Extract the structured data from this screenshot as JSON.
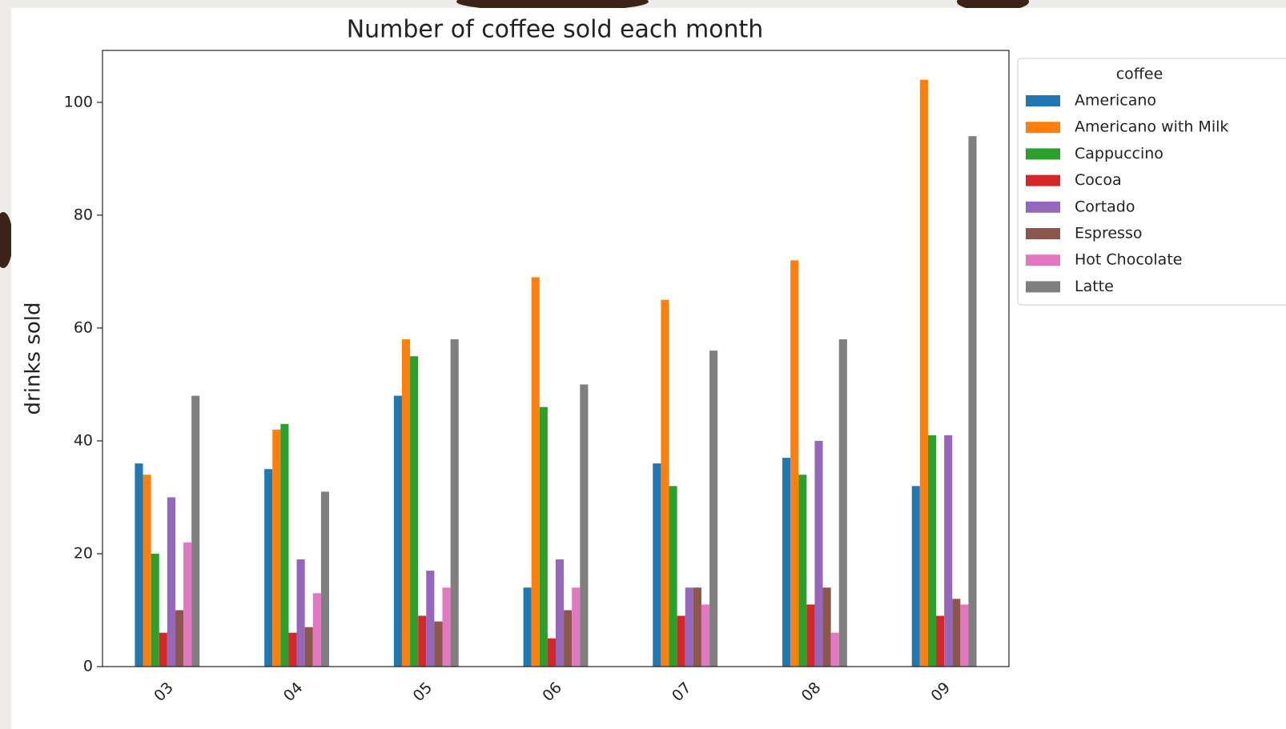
{
  "chart_data": {
    "type": "bar",
    "title": "Number of coffee sold each month",
    "y_label": "drinks sold",
    "categories": [
      "03",
      "04",
      "05",
      "06",
      "07",
      "08",
      "09"
    ],
    "legend_title": "coffee",
    "legend": "upper right outside",
    "series": [
      {
        "name": "Americano",
        "color": "#1f77b4",
        "values": [
          36,
          35,
          48,
          14,
          36,
          37,
          32
        ]
      },
      {
        "name": "Americano with Milk",
        "color": "#ff7f0e",
        "values": [
          34,
          42,
          58,
          69,
          65,
          72,
          104
        ]
      },
      {
        "name": "Cappuccino",
        "color": "#2ca02c",
        "values": [
          20,
          43,
          55,
          46,
          32,
          34,
          41
        ]
      },
      {
        "name": "Cocoa",
        "color": "#d62728",
        "values": [
          6,
          6,
          9,
          5,
          9,
          11,
          9
        ]
      },
      {
        "name": "Cortado",
        "color": "#9467bd",
        "values": [
          30,
          19,
          17,
          19,
          14,
          40,
          41
        ]
      },
      {
        "name": "Espresso",
        "color": "#8c564b",
        "values": [
          10,
          7,
          8,
          10,
          14,
          14,
          12
        ]
      },
      {
        "name": "Hot Chocolate",
        "color": "#e377c2",
        "values": [
          22,
          13,
          14,
          14,
          11,
          6,
          11
        ]
      },
      {
        "name": "Latte",
        "color": "#7f7f7f",
        "values": [
          48,
          31,
          58,
          50,
          56,
          58,
          94
        ]
      }
    ],
    "ylim": [
      0,
      109.2
    ],
    "yticks": [
      0,
      20,
      40,
      60,
      80,
      100
    ],
    "grid": false
  }
}
